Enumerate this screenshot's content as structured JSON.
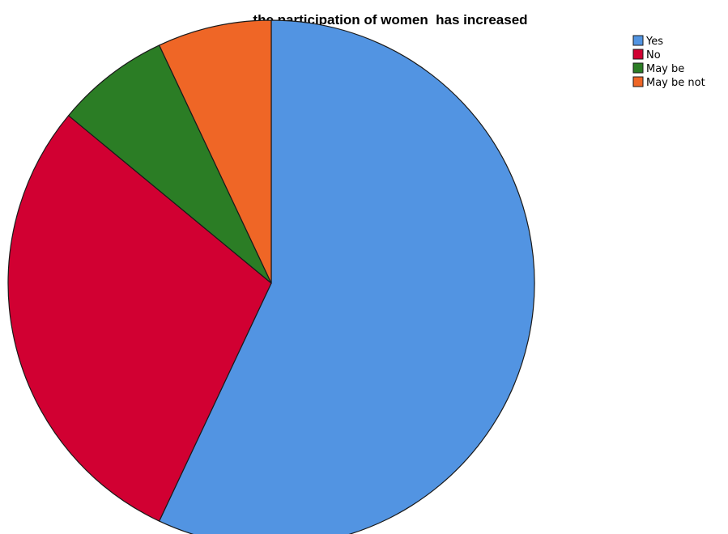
{
  "chart_data": {
    "type": "pie",
    "title": "the participation of women  has increased",
    "categories": [
      "Yes",
      "No",
      "May be",
      "May be not"
    ],
    "values": [
      57,
      29,
      7,
      7
    ],
    "colors": [
      "#5294e2",
      "#d10032",
      "#2b7d25",
      "#ef6626"
    ],
    "start_angle_deg": 0,
    "direction": "clockwise",
    "legend_position": "top-right"
  }
}
